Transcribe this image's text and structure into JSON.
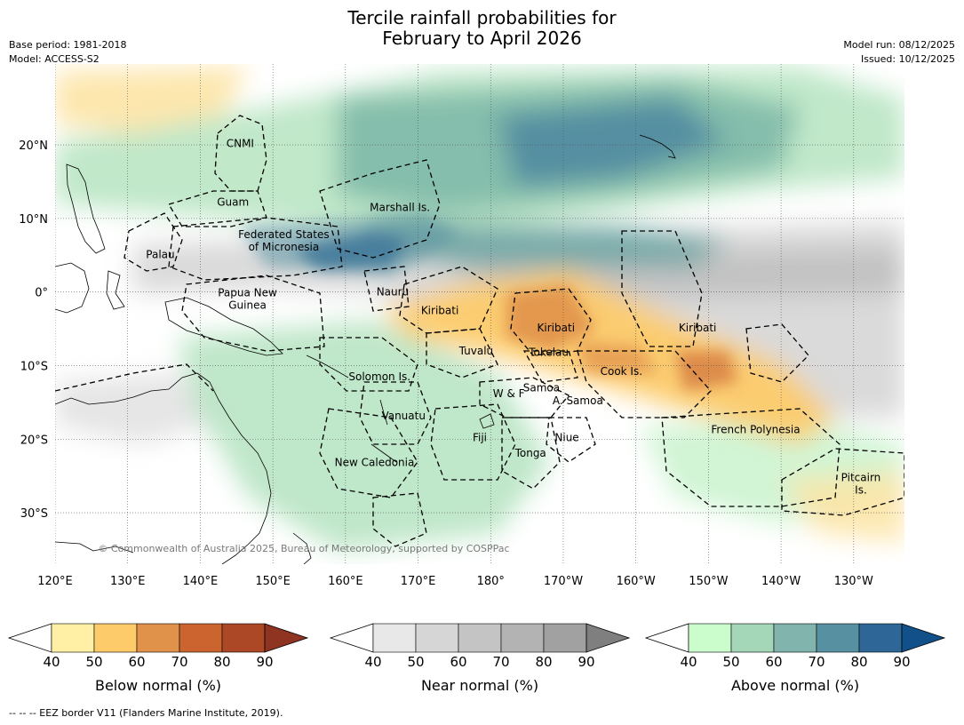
{
  "title": {
    "line1": "Tercile rainfall probabilities for",
    "line2": "February to April 2026"
  },
  "meta": {
    "base_period": "Base period: 1981-2018",
    "model": "Model: ACCESS-S2",
    "model_run": "Model run: 08/12/2025",
    "issued": "Issued: 10/12/2025"
  },
  "map": {
    "lon_range": [
      120,
      237
    ],
    "lat_range": [
      -37,
      31
    ],
    "lon_ticks": [
      {
        "value": 120,
        "label": "120°E"
      },
      {
        "value": 130,
        "label": "130°E"
      },
      {
        "value": 140,
        "label": "140°E"
      },
      {
        "value": 150,
        "label": "150°E"
      },
      {
        "value": 160,
        "label": "160°E"
      },
      {
        "value": 170,
        "label": "170°E"
      },
      {
        "value": 180,
        "label": "180°"
      },
      {
        "value": 190,
        "label": "170°W"
      },
      {
        "value": 200,
        "label": "160°W"
      },
      {
        "value": 210,
        "label": "150°W"
      },
      {
        "value": 220,
        "label": "140°W"
      },
      {
        "value": 230,
        "label": "130°W"
      }
    ],
    "lat_ticks": [
      {
        "value": 20,
        "label": "20°N"
      },
      {
        "value": 10,
        "label": "10°N"
      },
      {
        "value": 0,
        "label": "0°"
      },
      {
        "value": -10,
        "label": "10°S"
      },
      {
        "value": -20,
        "label": "20°S"
      },
      {
        "value": -30,
        "label": "30°S"
      }
    ],
    "grid": true,
    "copyright": "© Commonwealth of Australia 2025, Bureau of Meteorology, supported by COSPPac",
    "regions": [
      {
        "name": "CNMI",
        "lon": 145.5,
        "lat": 20.2
      },
      {
        "name": "Guam",
        "lon": 144.5,
        "lat": 12.2
      },
      {
        "name": "Marshall Is.",
        "lon": 167.5,
        "lat": 11.5
      },
      {
        "name": "Federated States",
        "lon": 151.5,
        "lat": 7.8
      },
      {
        "name": "of Micronesia",
        "lon": 151.5,
        "lat": 6.1
      },
      {
        "name": "Palau",
        "lon": 134.5,
        "lat": 5.1
      },
      {
        "name": "Papua New",
        "lon": 146.5,
        "lat": -0.1
      },
      {
        "name": "Guinea",
        "lon": 146.5,
        "lat": -1.8
      },
      {
        "name": "Nauru",
        "lon": 166.5,
        "lat": 0.0
      },
      {
        "name": "Kiribati",
        "lon": 173.0,
        "lat": -2.5
      },
      {
        "name": "Kiribati",
        "lon": 189.0,
        "lat": -4.9
      },
      {
        "name": "Kiribati",
        "lon": 208.5,
        "lat": -4.9
      },
      {
        "name": "Tuvalu",
        "lon": 178.0,
        "lat": -8.0
      },
      {
        "name": "Tokelau",
        "lon": 188.0,
        "lat": -8.2
      },
      {
        "name": "Cook Is.",
        "lon": 198.0,
        "lat": -10.8
      },
      {
        "name": "Solomon Is.",
        "lon": 164.7,
        "lat": -11.5
      },
      {
        "name": "Samoa",
        "lon": 187.0,
        "lat": -13.0
      },
      {
        "name": "W & F",
        "lon": 182.5,
        "lat": -13.8
      },
      {
        "name": "A. Samoa",
        "lon": 192.0,
        "lat": -14.8
      },
      {
        "name": "Vanuatu",
        "lon": 168.0,
        "lat": -16.8
      },
      {
        "name": "Fiji",
        "lon": 178.5,
        "lat": -19.8
      },
      {
        "name": "Niue",
        "lon": 190.5,
        "lat": -19.8
      },
      {
        "name": "French Polynesia",
        "lon": 216.5,
        "lat": -18.7
      },
      {
        "name": "Tonga",
        "lon": 185.5,
        "lat": -21.9
      },
      {
        "name": "New Caledonia",
        "lon": 164.0,
        "lat": -23.2
      },
      {
        "name": "Pitcairn",
        "lon": 231.0,
        "lat": -25.2
      },
      {
        "name": "Is.",
        "lon": 231.0,
        "lat": -26.9
      }
    ]
  },
  "colorbars": [
    {
      "label": "Below normal (%)",
      "ticks": [
        "40",
        "50",
        "60",
        "70",
        "80",
        "90"
      ],
      "colors": [
        "#fff0a5",
        "#fdcb6a",
        "#e0924a",
        "#cc6430",
        "#ac4825"
      ],
      "extend_color": "#8e3420"
    },
    {
      "label": "Near normal (%)",
      "ticks": [
        "40",
        "50",
        "60",
        "70",
        "80",
        "90"
      ],
      "colors": [
        "#e8e8e8",
        "#d6d6d6",
        "#c4c4c4",
        "#b3b3b3",
        "#a1a1a1"
      ],
      "extend_color": "#7f7f7f"
    },
    {
      "label": "Above normal (%)",
      "ticks": [
        "40",
        "50",
        "60",
        "70",
        "80",
        "90"
      ],
      "colors": [
        "#cbfdcc",
        "#a4d6b8",
        "#80b4ad",
        "#5790a0",
        "#2e6697"
      ],
      "extend_color": "#12508a"
    }
  ],
  "footnote": "--  --  -- EEZ border V11 (Flanders Marine Institute, 2019)."
}
